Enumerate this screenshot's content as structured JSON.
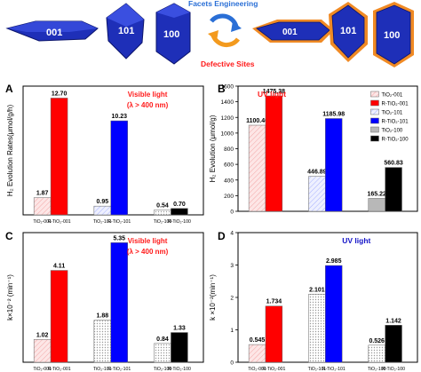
{
  "header": {
    "facets_label": "Facets Engineering",
    "defective_label": "Defective Sites",
    "left_crystals": [
      "001",
      "101",
      "100"
    ],
    "right_crystals": [
      "001",
      "101",
      "100"
    ]
  },
  "colors": {
    "crystal_blue": "#1e2fb8",
    "orange_shell": "#f08a24",
    "arrow_blue": "#2a6fd6",
    "arrow_orange": "#f39a1e",
    "label_red": "#ff1a1a",
    "label_blue": "#1414c8",
    "pink": "#f7c8c8",
    "red": "#ff0000",
    "lightblue": "#d6dcff",
    "blue": "#0000ff",
    "gray": "#cfcfcf",
    "black": "#000000"
  },
  "chart_data": [
    {
      "panel": "A",
      "type": "bar",
      "ylabel": "H₂ Evolution Rates(μmol/g/h)",
      "condition": [
        "Visible light",
        "(λ > 400 nm)"
      ],
      "condition_color": "#ff1a1a",
      "ylim": [
        0,
        14
      ],
      "yticks": [],
      "categories": [
        "TiO₂-001",
        "R-TiO₂-001",
        "TiO₂-101",
        "R-TiO₂-101",
        "TiO₂-100",
        "R-TiO₂-100"
      ],
      "values": [
        1.87,
        12.7,
        0.95,
        10.23,
        0.54,
        0.7
      ],
      "labels": [
        "1.87",
        "12.70",
        "0.95",
        "10.23",
        "0.54",
        "0.70"
      ],
      "fills": [
        "#fbe3e3",
        "#ff0000",
        "#eef0ff",
        "#0000ff",
        "#e6e6e6",
        "#000000"
      ],
      "legend": []
    },
    {
      "panel": "B",
      "type": "bar",
      "ylabel": "H₂ Evolution (μmol/g)",
      "condition": [
        "UV light"
      ],
      "condition_color": "#ff1a1a",
      "ylim": [
        0,
        1600
      ],
      "yticks": [
        "0",
        "200",
        "400",
        "600",
        "800",
        "1000",
        "1200",
        "1400",
        "1600"
      ],
      "categories": [],
      "values": [
        1100.46,
        1475.38,
        446.89,
        1185.98,
        165.22,
        560.83
      ],
      "labels": [
        "1100.46",
        "1475.38",
        "446.89",
        "1185.98",
        "165.22",
        "560.83"
      ],
      "fills": [
        "#f7c8c8",
        "#ff0000",
        "#c8cfff",
        "#0000ff",
        "#b8b8b8",
        "#000000"
      ],
      "legend": [
        "TiO₂-001",
        "R-TiO₂-001",
        "TiO₂-101",
        "R-TiO₂-101",
        "TiO₂-100",
        "R-TiO₂-100"
      ]
    },
    {
      "panel": "C",
      "type": "bar",
      "ylabel": "k×10⁻² (min⁻¹)",
      "condition": [
        "Visible light",
        "(λ > 400 nm)"
      ],
      "condition_color": "#ff1a1a",
      "ylim": [
        0,
        5.8
      ],
      "yticks": [],
      "categories": [
        "TiO₂-001",
        "R-TiO₂-001",
        "TiO₂-101",
        "R-TiO₂-101",
        "TiO₂-100",
        "R-TiO₂-100"
      ],
      "values": [
        1.02,
        4.11,
        1.88,
        5.35,
        0.84,
        1.33
      ],
      "labels": [
        "1.02",
        "4.11",
        "1.88",
        "5.35",
        "0.84",
        "1.33"
      ],
      "fills": [
        "#fbe3e3",
        "#ff0000",
        "#e0e4ff",
        "#0000ff",
        "#e6e6e6",
        "#000000"
      ],
      "legend": []
    },
    {
      "panel": "D",
      "type": "bar",
      "ylabel": "k ×10⁻²(min⁻¹)",
      "condition": [
        "UV light"
      ],
      "condition_color": "#1414c8",
      "ylim": [
        0,
        4
      ],
      "yticks": [
        "0",
        "1",
        "2",
        "3",
        "4"
      ],
      "categories": [
        "TiO₂-001",
        "R-TiO₂-001",
        "TiO₂-101",
        "R-TiO₂-101",
        "TiO₂-100",
        "R-TiO₂-100"
      ],
      "values": [
        0.545,
        1.734,
        2.101,
        2.985,
        0.526,
        1.142
      ],
      "labels": [
        "0.545",
        "1.734",
        "2.101",
        "2.985",
        "0.526",
        "1.142"
      ],
      "fills": [
        "#fbe3e3",
        "#ff0000",
        "#e0e4ff",
        "#0000ff",
        "#ffffff",
        "#000000"
      ],
      "legend": []
    }
  ]
}
